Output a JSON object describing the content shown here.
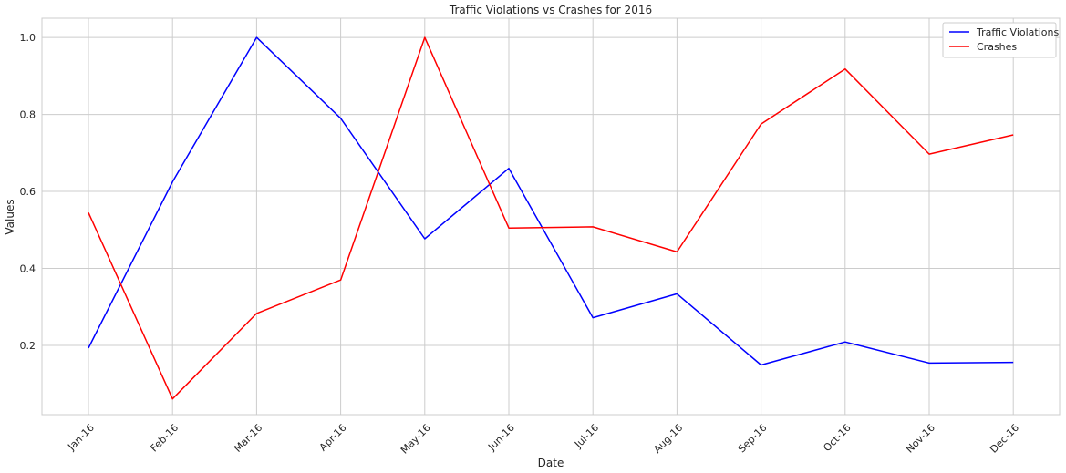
{
  "chart_data": {
    "type": "line",
    "title": "Traffic Violations vs Crashes for 2016",
    "xlabel": "Date",
    "ylabel": "Values",
    "categories": [
      "Jan-16",
      "Feb-16",
      "Mar-16",
      "Apr-16",
      "May-16",
      "Jun-16",
      "Jul-16",
      "Aug-16",
      "Sep-16",
      "Oct-16",
      "Nov-16",
      "Dec-16"
    ],
    "ylim": [
      0.02,
      1.05
    ],
    "yticks": [
      0.2,
      0.4,
      0.6,
      0.8,
      1.0
    ],
    "ytick_labels": [
      "0.2",
      "0.4",
      "0.6",
      "0.8",
      "1.0"
    ],
    "grid": true,
    "legend_position": "top-right",
    "series": [
      {
        "name": "Traffic Violations",
        "color": "#0000ff",
        "values": [
          0.193,
          0.625,
          1.0,
          0.79,
          0.477,
          0.66,
          0.272,
          0.334,
          0.149,
          0.209,
          0.154,
          0.156
        ]
      },
      {
        "name": "Crashes",
        "color": "#ff0000",
        "values": [
          0.545,
          0.061,
          0.283,
          0.37,
          1.0,
          0.505,
          0.508,
          0.443,
          0.775,
          0.918,
          0.697,
          0.747
        ]
      }
    ]
  }
}
